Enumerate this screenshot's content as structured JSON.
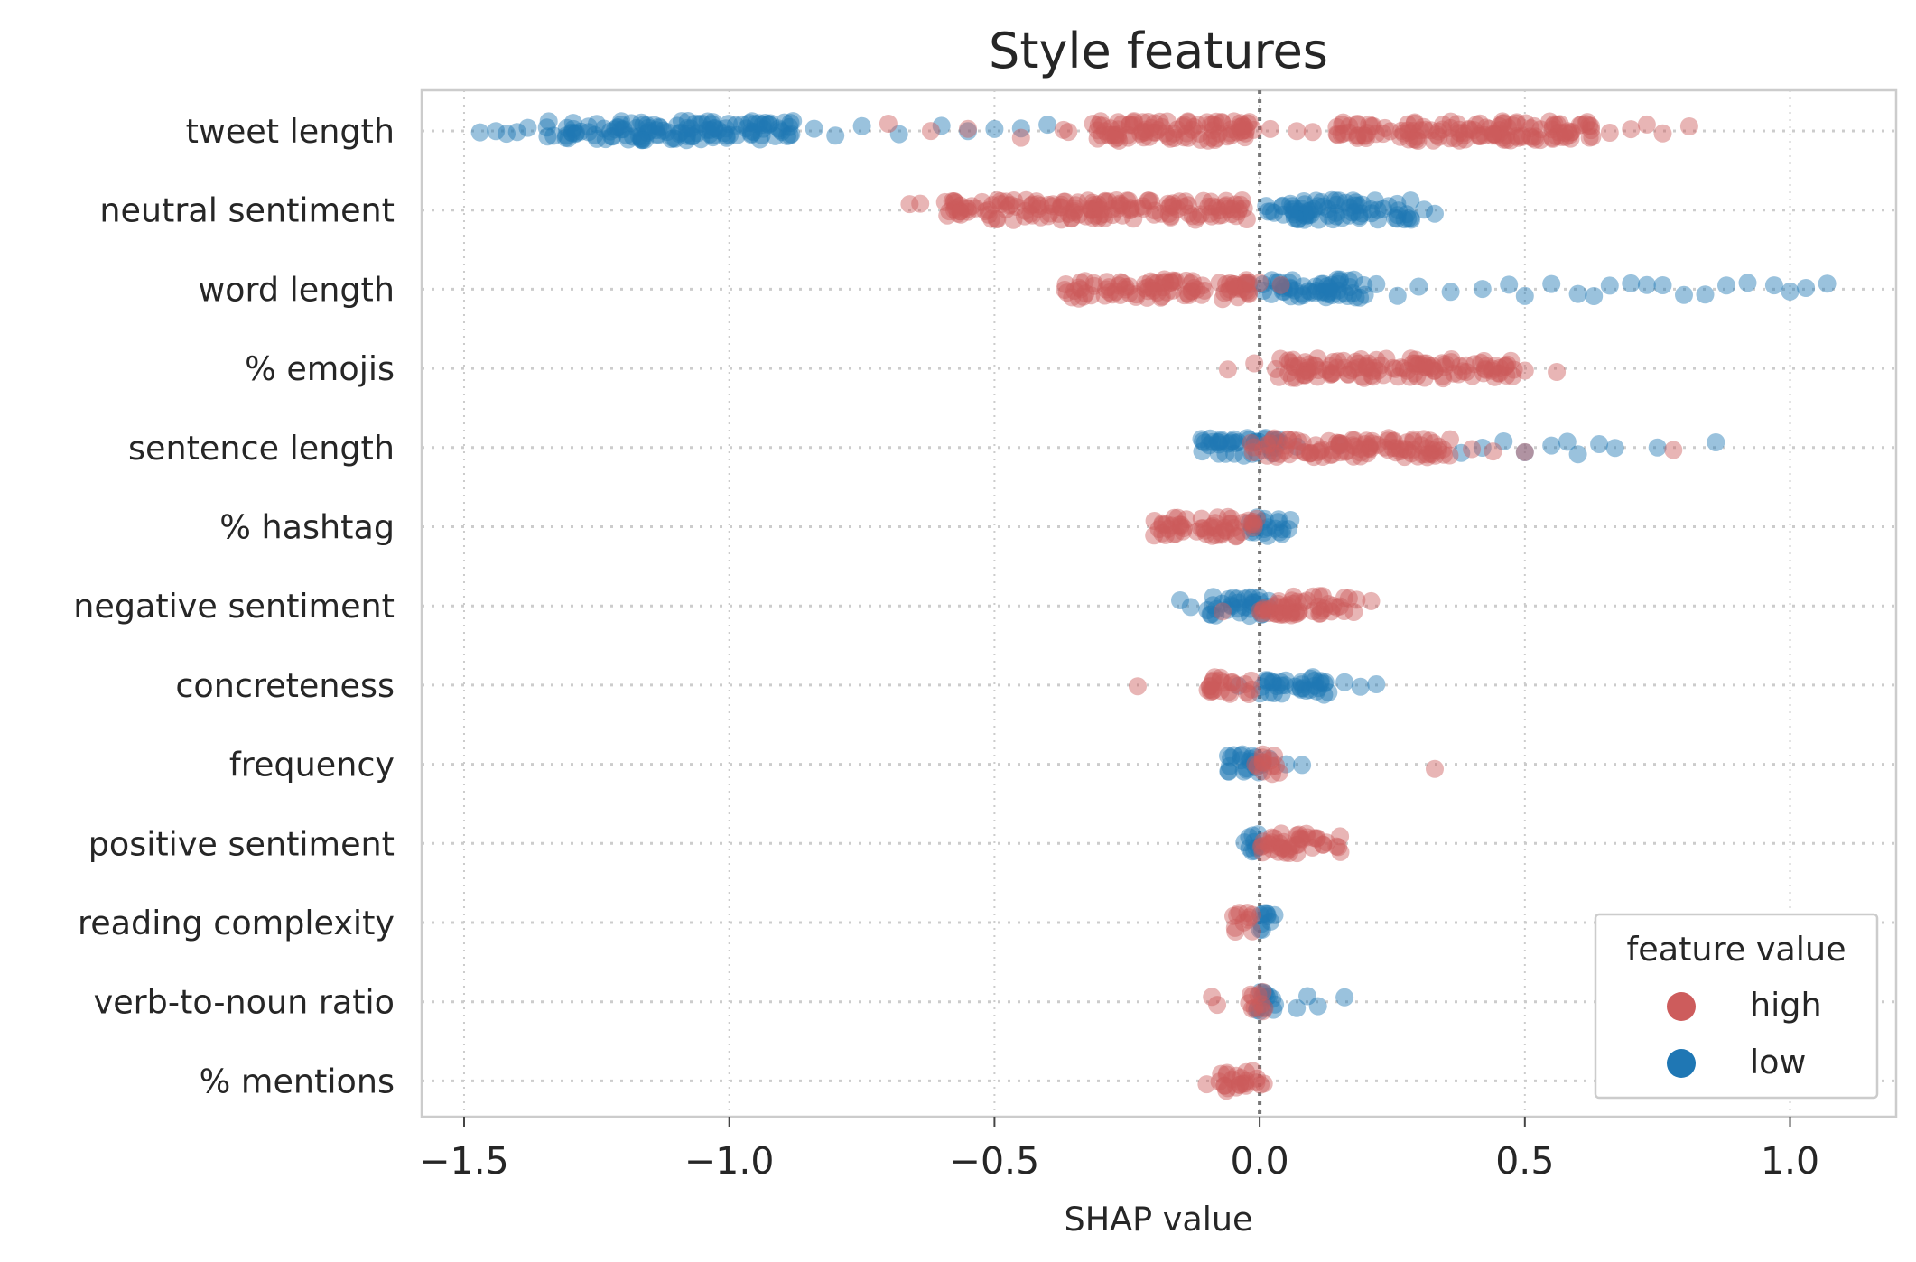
{
  "chart_data": {
    "type": "scatter",
    "title": "Style features",
    "xlabel": "SHAP value",
    "ylabel": "",
    "xlim": [
      -1.58,
      1.2
    ],
    "x_ticks": [
      -1.5,
      -1.0,
      -0.5,
      0.0,
      0.5,
      1.0
    ],
    "x_tick_labels": [
      "−1.5",
      "−1.0",
      "−0.5",
      "0.0",
      "0.5",
      "1.0"
    ],
    "grid": true,
    "zero_line": 0.0,
    "legend": {
      "title": "feature value",
      "placement": "lower-right",
      "entries": [
        {
          "label": "high",
          "color": "#cd5c5c"
        },
        {
          "label": "low",
          "color": "#1f77b4"
        }
      ]
    },
    "features": [
      {
        "name": "tweet length",
        "high": {
          "dense": [
            [
              -0.37,
              -0.01
            ],
            [
              0.14,
              0.63
            ]
          ],
          "sparse": [
            -0.7,
            -0.62,
            -0.55,
            -0.45,
            0.02,
            0.07,
            0.1,
            0.66,
            0.7,
            0.73,
            0.76,
            0.81
          ]
        },
        "low": {
          "dense": [
            [
              -1.35,
              -0.88
            ]
          ],
          "sparse": [
            -1.47,
            -1.44,
            -1.42,
            -1.4,
            -1.38,
            -0.84,
            -0.8,
            -0.75,
            -0.68,
            -0.6,
            -0.55,
            -0.5,
            -0.45,
            -0.4
          ]
        }
      },
      {
        "name": "neutral sentiment",
        "high": {
          "dense": [
            [
              -0.6,
              -0.02
            ]
          ],
          "sparse": [
            -0.66,
            -0.64
          ]
        },
        "low": {
          "dense": [
            [
              0.01,
              0.29
            ]
          ],
          "sparse": [
            0.31,
            0.33
          ]
        }
      },
      {
        "name": "word length",
        "high": {
          "dense": [
            [
              -0.37,
              -0.02
            ]
          ],
          "sparse": [
            0.0,
            0.04
          ]
        },
        "low": {
          "dense": [
            [
              0.0,
              0.2
            ]
          ],
          "sparse": [
            -0.02,
            0.22,
            0.26,
            0.3,
            0.36,
            0.42,
            0.47,
            0.5,
            0.55,
            0.6,
            0.63,
            0.66,
            0.7,
            0.73,
            0.76,
            0.8,
            0.84,
            0.88,
            0.92,
            0.97,
            1.0,
            1.03,
            1.07
          ]
        }
      },
      {
        "name": "% emojis",
        "high": {
          "dense": [
            [
              0.03,
              0.48
            ]
          ],
          "sparse": [
            -0.06,
            -0.01,
            0.5,
            0.56
          ]
        },
        "low": {
          "dense": [],
          "sparse": []
        }
      },
      {
        "name": "sentence length",
        "high": {
          "dense": [
            [
              -0.02,
              0.36
            ]
          ],
          "sparse": [
            0.4,
            0.44,
            0.5,
            0.78
          ]
        },
        "low": {
          "dense": [
            [
              -0.11,
              0.04
            ]
          ],
          "sparse": [
            0.07,
            0.15,
            0.38,
            0.42,
            0.46,
            0.5,
            0.55,
            0.58,
            0.6,
            0.64,
            0.67,
            0.75,
            0.86
          ]
        }
      },
      {
        "name": "% hashtag",
        "high": {
          "dense": [
            [
              -0.2,
              0.0
            ]
          ],
          "sparse": []
        },
        "low": {
          "dense": [
            [
              -0.02,
              0.06
            ]
          ],
          "sparse": []
        }
      },
      {
        "name": "negative sentiment",
        "high": {
          "dense": [
            [
              0.0,
              0.19
            ]
          ],
          "sparse": [
            -0.07,
            0.21
          ]
        },
        "low": {
          "dense": [
            [
              -0.1,
              0.02
            ]
          ],
          "sparse": [
            -0.15,
            -0.13
          ]
        }
      },
      {
        "name": "concreteness",
        "high": {
          "dense": [
            [
              -0.1,
              -0.01
            ]
          ],
          "sparse": [
            -0.23
          ]
        },
        "low": {
          "dense": [
            [
              0.0,
              0.13
            ]
          ],
          "sparse": [
            -0.04,
            0.16,
            0.19,
            0.22
          ]
        }
      },
      {
        "name": "frequency",
        "high": {
          "dense": [
            [
              -0.01,
              0.04
            ]
          ],
          "sparse": [
            0.33
          ]
        },
        "low": {
          "dense": [
            [
              -0.06,
              0.02
            ]
          ],
          "sparse": [
            0.05,
            0.08
          ]
        }
      },
      {
        "name": "positive sentiment",
        "high": {
          "dense": [
            [
              0.0,
              0.16
            ]
          ],
          "sparse": []
        },
        "low": {
          "dense": [
            [
              -0.03,
              0.0
            ]
          ],
          "sparse": []
        }
      },
      {
        "name": "reading complexity",
        "high": {
          "dense": [
            [
              -0.05,
              -0.01
            ]
          ],
          "sparse": []
        },
        "low": {
          "dense": [
            [
              0.0,
              0.03
            ]
          ],
          "sparse": []
        }
      },
      {
        "name": "verb-to-noun ratio",
        "high": {
          "dense": [
            [
              -0.02,
              0.01
            ]
          ],
          "sparse": [
            -0.09,
            -0.08
          ]
        },
        "low": {
          "dense": [
            [
              -0.02,
              0.03
            ]
          ],
          "sparse": [
            0.07,
            0.09,
            0.11,
            0.16
          ]
        }
      },
      {
        "name": "% mentions",
        "high": {
          "dense": [
            [
              -0.08,
              0.01
            ]
          ],
          "sparse": [
            -0.1
          ]
        },
        "low": {
          "dense": [],
          "sparse": []
        }
      }
    ]
  }
}
